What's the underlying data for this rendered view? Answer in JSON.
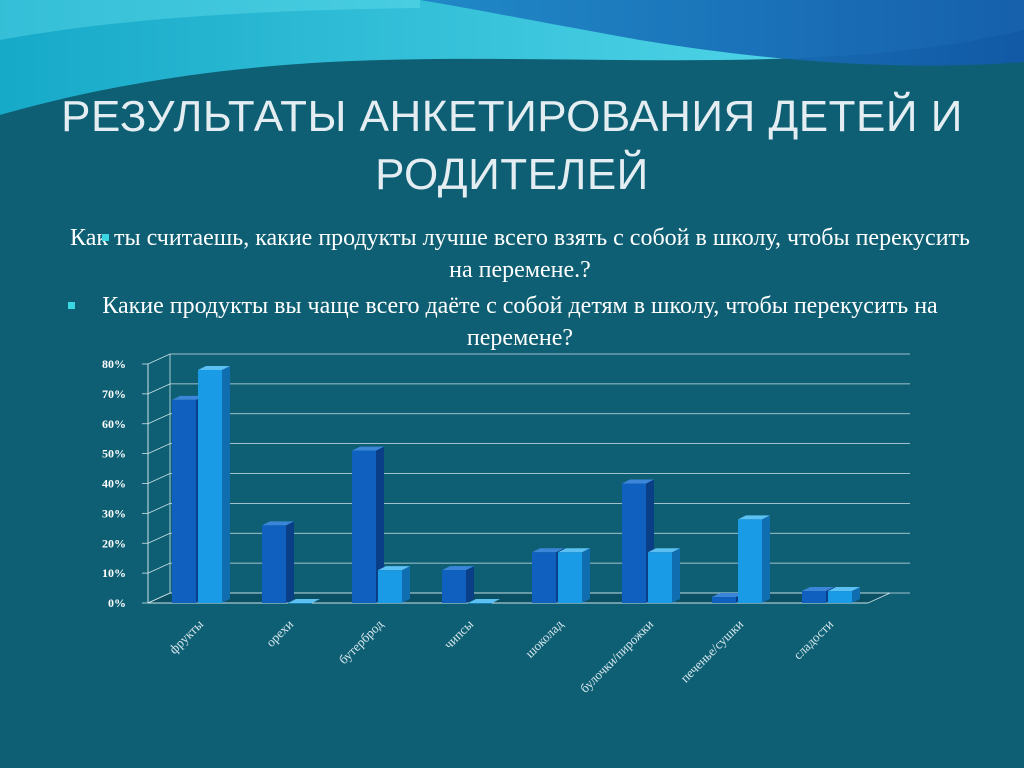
{
  "slide": {
    "title": "РЕЗУЛЬТАТЫ АНКЕТИРОВАНИЯ ДЕТЕЙ И РОДИТЕЛЕЙ",
    "bullets": [
      "Как ты считаешь, какие продукты лучше всего взять с собой в школу, чтобы перекусить на перемене.?",
      "Какие продукты вы чаще всего даёте с собой детям в школу, чтобы перекусить на перемене?"
    ]
  },
  "colors": {
    "background": "#0e5f73",
    "series_dark": "#1060c0",
    "series_light": "#1a9be6",
    "bullet_marker": "#3ad7e2"
  },
  "chart_data": {
    "type": "bar",
    "categories": [
      "фрукты",
      "орехи",
      "бутерброд",
      "чипсы",
      "шоколад",
      "булочки/пирожки",
      "печенье/сушки",
      "сладости"
    ],
    "series": [
      {
        "values": [
          68,
          26,
          51,
          11,
          17,
          40,
          2,
          4
        ]
      },
      {
        "values": [
          78,
          0,
          11,
          0,
          17,
          17,
          28,
          4
        ]
      }
    ],
    "yticks": [
      "0%",
      "10%",
      "20%",
      "30%",
      "40%",
      "50%",
      "60%",
      "70%",
      "80%"
    ],
    "ylim": [
      0,
      80
    ],
    "grid": true,
    "legend": "none",
    "three_d": true
  }
}
